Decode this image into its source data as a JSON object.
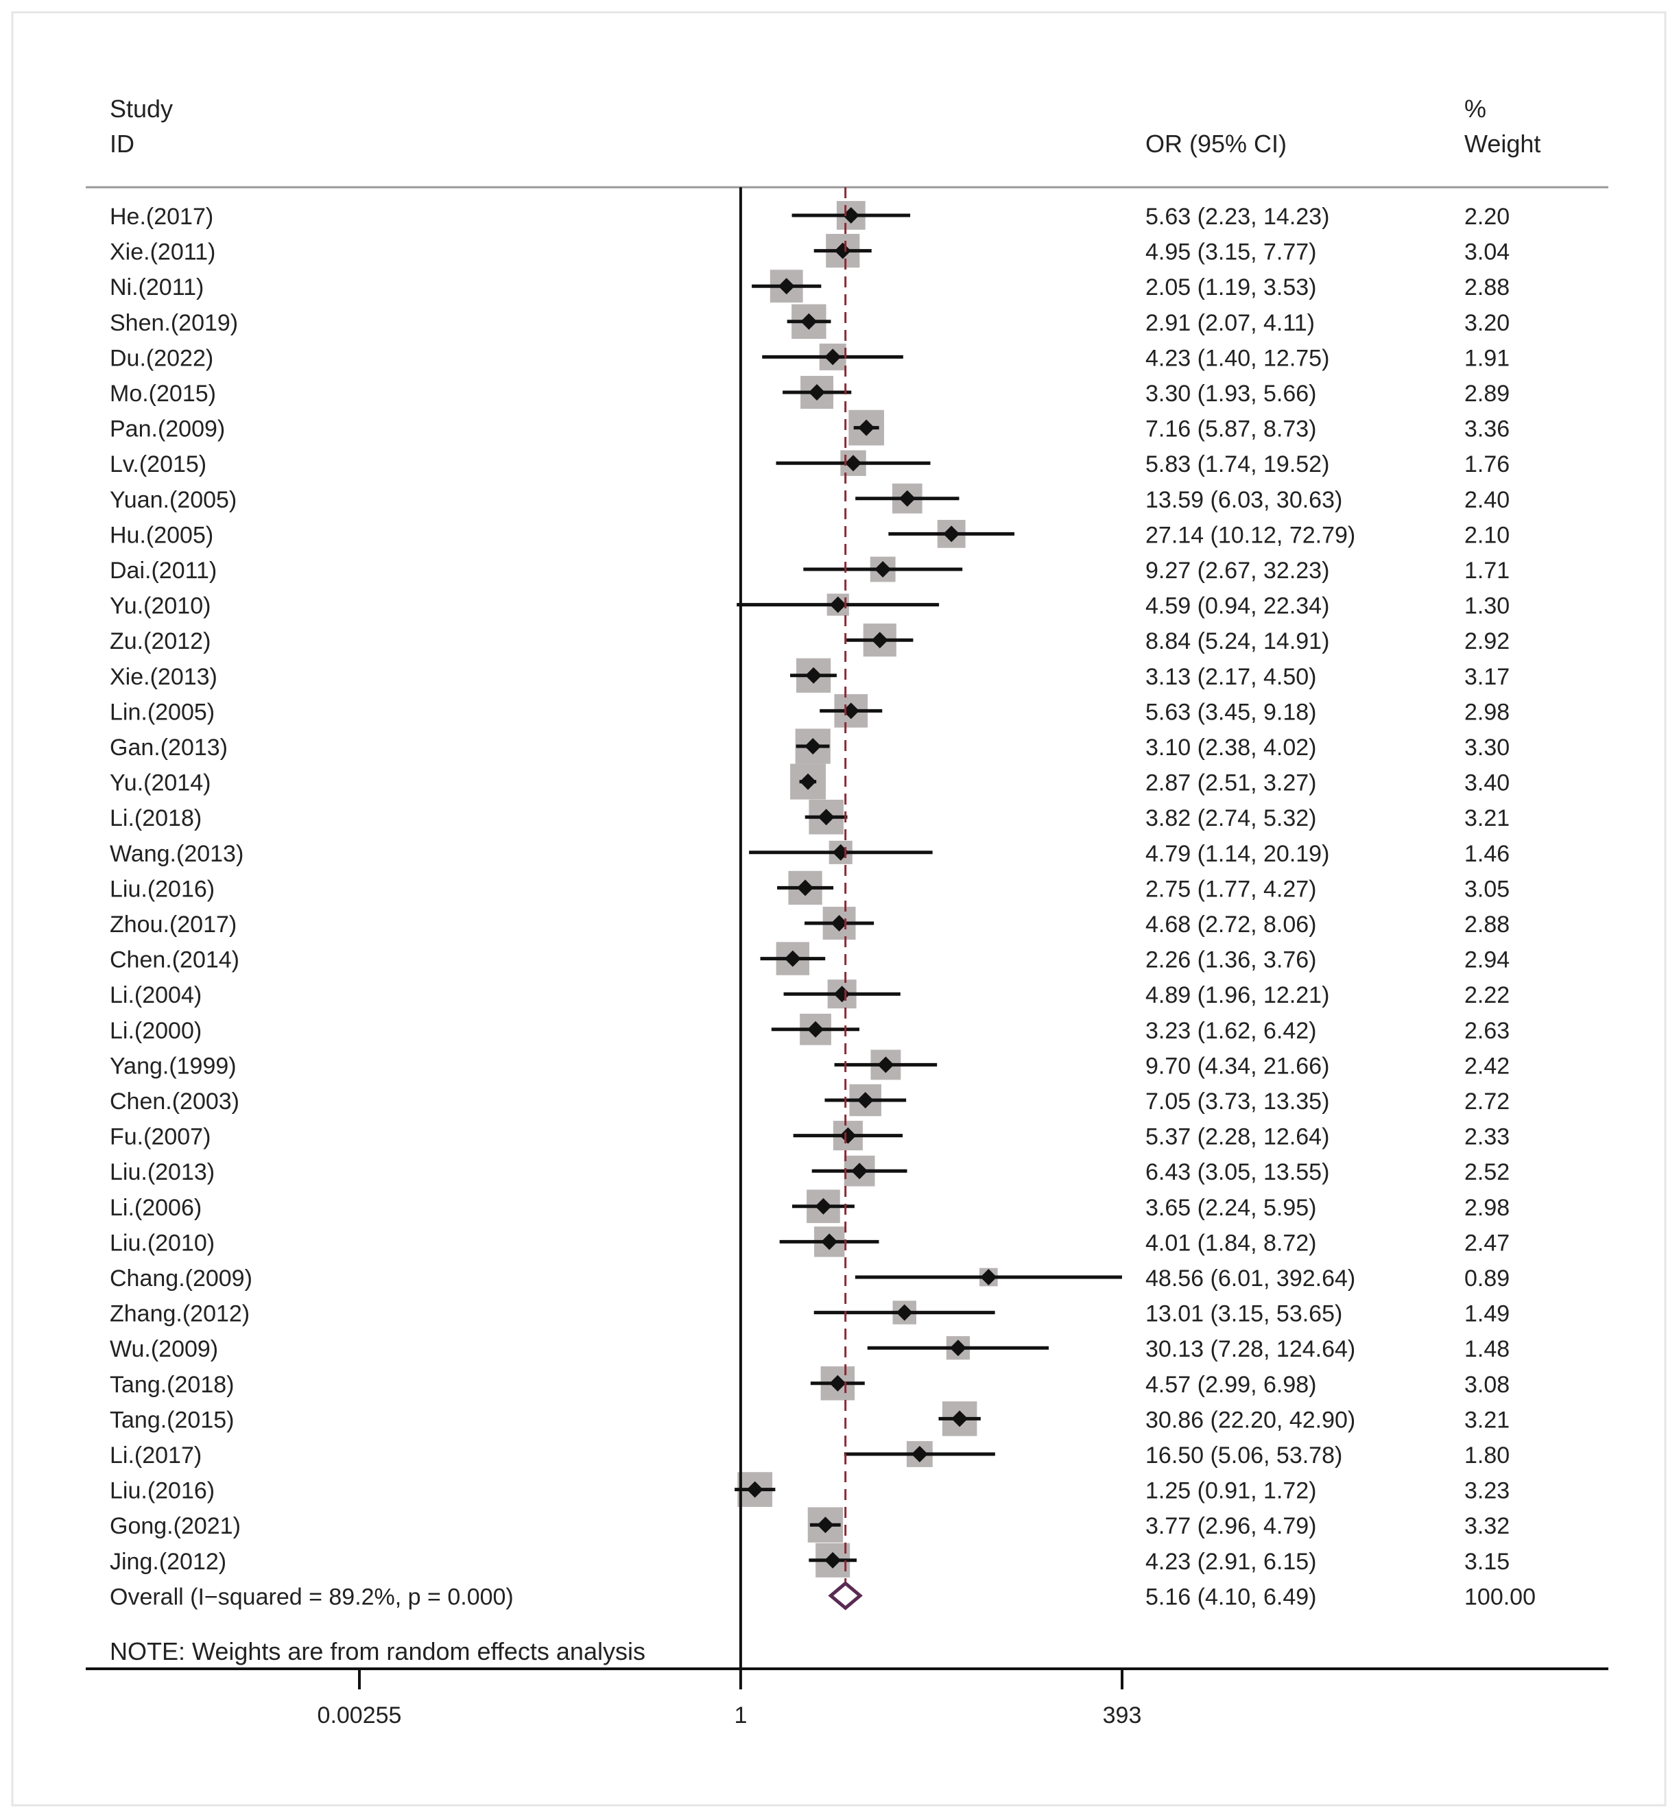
{
  "chart_data": {
    "type": "forest",
    "header": {
      "study_line1": "Study",
      "study_line2": "ID",
      "or_label": "OR (95% CI)",
      "weight_line1": "%",
      "weight_line2": "Weight"
    },
    "studies": [
      {
        "id": "He.(2017)",
        "or": 5.63,
        "lo": 2.23,
        "hi": 14.23,
        "ci": "5.63 (2.23, 14.23)",
        "weight": 2.2,
        "weight_label": "2.20"
      },
      {
        "id": "Xie.(2011)",
        "or": 4.95,
        "lo": 3.15,
        "hi": 7.77,
        "ci": "4.95 (3.15, 7.77)",
        "weight": 3.04,
        "weight_label": "3.04"
      },
      {
        "id": "Ni.(2011)",
        "or": 2.05,
        "lo": 1.19,
        "hi": 3.53,
        "ci": "2.05 (1.19, 3.53)",
        "weight": 2.88,
        "weight_label": "2.88"
      },
      {
        "id": "Shen.(2019)",
        "or": 2.91,
        "lo": 2.07,
        "hi": 4.11,
        "ci": "2.91 (2.07, 4.11)",
        "weight": 3.2,
        "weight_label": "3.20"
      },
      {
        "id": "Du.(2022)",
        "or": 4.23,
        "lo": 1.4,
        "hi": 12.75,
        "ci": "4.23 (1.40, 12.75)",
        "weight": 1.91,
        "weight_label": "1.91"
      },
      {
        "id": "Mo.(2015)",
        "or": 3.3,
        "lo": 1.93,
        "hi": 5.66,
        "ci": "3.30 (1.93, 5.66)",
        "weight": 2.89,
        "weight_label": "2.89"
      },
      {
        "id": "Pan.(2009)",
        "or": 7.16,
        "lo": 5.87,
        "hi": 8.73,
        "ci": "7.16 (5.87, 8.73)",
        "weight": 3.36,
        "weight_label": "3.36"
      },
      {
        "id": "Lv.(2015)",
        "or": 5.83,
        "lo": 1.74,
        "hi": 19.52,
        "ci": "5.83 (1.74, 19.52)",
        "weight": 1.76,
        "weight_label": "1.76"
      },
      {
        "id": "Yuan.(2005)",
        "or": 13.59,
        "lo": 6.03,
        "hi": 30.63,
        "ci": "13.59 (6.03, 30.63)",
        "weight": 2.4,
        "weight_label": "2.40"
      },
      {
        "id": "Hu.(2005)",
        "or": 27.14,
        "lo": 10.12,
        "hi": 72.79,
        "ci": "27.14 (10.12, 72.79)",
        "weight": 2.1,
        "weight_label": "2.10"
      },
      {
        "id": "Dai.(2011)",
        "or": 9.27,
        "lo": 2.67,
        "hi": 32.23,
        "ci": "9.27 (2.67, 32.23)",
        "weight": 1.71,
        "weight_label": "1.71"
      },
      {
        "id": "Yu.(2010)",
        "or": 4.59,
        "lo": 0.94,
        "hi": 22.34,
        "ci": "4.59 (0.94, 22.34)",
        "weight": 1.3,
        "weight_label": "1.30"
      },
      {
        "id": "Zu.(2012)",
        "or": 8.84,
        "lo": 5.24,
        "hi": 14.91,
        "ci": "8.84 (5.24, 14.91)",
        "weight": 2.92,
        "weight_label": "2.92"
      },
      {
        "id": "Xie.(2013)",
        "or": 3.13,
        "lo": 2.17,
        "hi": 4.5,
        "ci": "3.13 (2.17, 4.50)",
        "weight": 3.17,
        "weight_label": "3.17"
      },
      {
        "id": "Lin.(2005)",
        "or": 5.63,
        "lo": 3.45,
        "hi": 9.18,
        "ci": "5.63 (3.45, 9.18)",
        "weight": 2.98,
        "weight_label": "2.98"
      },
      {
        "id": "Gan.(2013)",
        "or": 3.1,
        "lo": 2.38,
        "hi": 4.02,
        "ci": "3.10 (2.38, 4.02)",
        "weight": 3.3,
        "weight_label": "3.30"
      },
      {
        "id": "Yu.(2014)",
        "or": 2.87,
        "lo": 2.51,
        "hi": 3.27,
        "ci": "2.87 (2.51, 3.27)",
        "weight": 3.4,
        "weight_label": "3.40"
      },
      {
        "id": "Li.(2018)",
        "or": 3.82,
        "lo": 2.74,
        "hi": 5.32,
        "ci": "3.82 (2.74, 5.32)",
        "weight": 3.21,
        "weight_label": "3.21"
      },
      {
        "id": "Wang.(2013)",
        "or": 4.79,
        "lo": 1.14,
        "hi": 20.19,
        "ci": "4.79 (1.14, 20.19)",
        "weight": 1.46,
        "weight_label": "1.46"
      },
      {
        "id": "Liu.(2016)",
        "or": 2.75,
        "lo": 1.77,
        "hi": 4.27,
        "ci": "2.75 (1.77, 4.27)",
        "weight": 3.05,
        "weight_label": "3.05"
      },
      {
        "id": "Zhou.(2017)",
        "or": 4.68,
        "lo": 2.72,
        "hi": 8.06,
        "ci": "4.68 (2.72, 8.06)",
        "weight": 2.88,
        "weight_label": "2.88"
      },
      {
        "id": "Chen.(2014)",
        "or": 2.26,
        "lo": 1.36,
        "hi": 3.76,
        "ci": "2.26 (1.36, 3.76)",
        "weight": 2.94,
        "weight_label": "2.94"
      },
      {
        "id": "Li.(2004)",
        "or": 4.89,
        "lo": 1.96,
        "hi": 12.21,
        "ci": "4.89 (1.96, 12.21)",
        "weight": 2.22,
        "weight_label": "2.22"
      },
      {
        "id": "Li.(2000)",
        "or": 3.23,
        "lo": 1.62,
        "hi": 6.42,
        "ci": "3.23 (1.62, 6.42)",
        "weight": 2.63,
        "weight_label": "2.63"
      },
      {
        "id": "Yang.(1999)",
        "or": 9.7,
        "lo": 4.34,
        "hi": 21.66,
        "ci": "9.70 (4.34, 21.66)",
        "weight": 2.42,
        "weight_label": "2.42"
      },
      {
        "id": "Chen.(2003)",
        "or": 7.05,
        "lo": 3.73,
        "hi": 13.35,
        "ci": "7.05 (3.73, 13.35)",
        "weight": 2.72,
        "weight_label": "2.72"
      },
      {
        "id": "Fu.(2007)",
        "or": 5.37,
        "lo": 2.28,
        "hi": 12.64,
        "ci": "5.37 (2.28, 12.64)",
        "weight": 2.33,
        "weight_label": "2.33"
      },
      {
        "id": "Liu.(2013)",
        "or": 6.43,
        "lo": 3.05,
        "hi": 13.55,
        "ci": "6.43 (3.05, 13.55)",
        "weight": 2.52,
        "weight_label": "2.52"
      },
      {
        "id": "Li.(2006)",
        "or": 3.65,
        "lo": 2.24,
        "hi": 5.95,
        "ci": "3.65 (2.24, 5.95)",
        "weight": 2.98,
        "weight_label": "2.98"
      },
      {
        "id": "Liu.(2010)",
        "or": 4.01,
        "lo": 1.84,
        "hi": 8.72,
        "ci": "4.01 (1.84, 8.72)",
        "weight": 2.47,
        "weight_label": "2.47"
      },
      {
        "id": "Chang.(2009)",
        "or": 48.56,
        "lo": 6.01,
        "hi": 392.64,
        "ci": "48.56 (6.01, 392.64)",
        "weight": 0.89,
        "weight_label": "0.89"
      },
      {
        "id": "Zhang.(2012)",
        "or": 13.01,
        "lo": 3.15,
        "hi": 53.65,
        "ci": "13.01 (3.15, 53.65)",
        "weight": 1.49,
        "weight_label": "1.49"
      },
      {
        "id": "Wu.(2009)",
        "or": 30.13,
        "lo": 7.28,
        "hi": 124.64,
        "ci": "30.13 (7.28, 124.64)",
        "weight": 1.48,
        "weight_label": "1.48"
      },
      {
        "id": "Tang.(2018)",
        "or": 4.57,
        "lo": 2.99,
        "hi": 6.98,
        "ci": "4.57 (2.99, 6.98)",
        "weight": 3.08,
        "weight_label": "3.08"
      },
      {
        "id": "Tang.(2015)",
        "or": 30.86,
        "lo": 22.2,
        "hi": 42.9,
        "ci": "30.86 (22.20, 42.90)",
        "weight": 3.21,
        "weight_label": "3.21"
      },
      {
        "id": "Li.(2017)",
        "or": 16.5,
        "lo": 5.06,
        "hi": 53.78,
        "ci": "16.50 (5.06, 53.78)",
        "weight": 1.8,
        "weight_label": "1.80"
      },
      {
        "id": "Liu.(2016)",
        "or": 1.25,
        "lo": 0.91,
        "hi": 1.72,
        "ci": "1.25 (0.91, 1.72)",
        "weight": 3.23,
        "weight_label": "3.23"
      },
      {
        "id": "Gong.(2021)",
        "or": 3.77,
        "lo": 2.96,
        "hi": 4.79,
        "ci": "3.77 (2.96, 4.79)",
        "weight": 3.32,
        "weight_label": "3.32"
      },
      {
        "id": "Jing.(2012)",
        "or": 4.23,
        "lo": 2.91,
        "hi": 6.15,
        "ci": "4.23 (2.91, 6.15)",
        "weight": 3.15,
        "weight_label": "3.15"
      }
    ],
    "overall": {
      "label": "Overall  (I−squared = 89.2%, p = 0.000)",
      "or": 5.16,
      "lo": 4.1,
      "hi": 6.49,
      "ci": "5.16 (4.10, 6.49)",
      "weight_label": "100.00"
    },
    "note": "NOTE: Weights are from random effects analysis",
    "x_axis": {
      "scale": "log",
      "min": 0.00255,
      "max": 393,
      "null_value": 1,
      "ticks": [
        {
          "value": 0.00255,
          "label": "0.00255"
        },
        {
          "value": 1,
          "label": "1"
        },
        {
          "value": 393,
          "label": "393"
        }
      ]
    },
    "colors": {
      "box": "#b8b3b3",
      "ci_line": "#111111",
      "point": "#111111",
      "overall_line": "#8b2a35",
      "diamond": "#5a2b52",
      "rule": "#999999",
      "text": "#222222"
    }
  }
}
